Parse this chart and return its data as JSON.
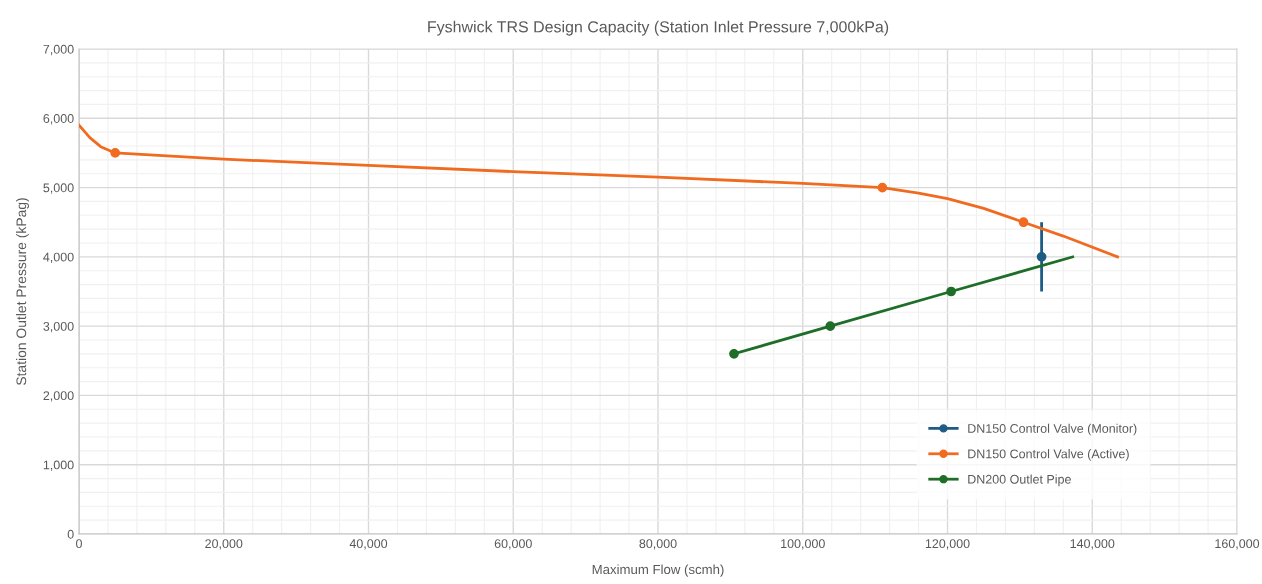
{
  "chart_data": {
    "type": "line",
    "title": "Fyshwick TRS Design Capacity (Station Inlet Pressure 7,000kPa)",
    "xlabel": "Maximum Flow (scmh)",
    "ylabel": "Station Outlet Pressure (kPag)",
    "series": [
      {
        "name": "DN150 Control Valve (Monitor)",
        "type": "scatter",
        "color": "#1f5c85",
        "x": [
          133000
        ],
        "values": [
          4000
        ],
        "errors": [
          500
        ]
      },
      {
        "name": "DN150 Control Valve (Active)",
        "color": "#f06b20",
        "x": [
          0,
          1500,
          3000,
          5000,
          20000,
          40000,
          60000,
          80000,
          100000,
          111000,
          116000,
          120000,
          125000,
          130500,
          136000,
          143500
        ],
        "values": [
          5900,
          5720,
          5590,
          5500,
          5410,
          5320,
          5230,
          5150,
          5060,
          5000,
          4920,
          4840,
          4700,
          4500,
          4300,
          4000
        ]
      },
      {
        "type": "scatter",
        "color": "#f06b20",
        "x": [
          5000,
          111000,
          130500
        ],
        "values": [
          5500,
          5000,
          4500
        ]
      },
      {
        "name": "DN200 Outlet Pipe",
        "color": "#1e6e28",
        "x": [
          90500,
          103800,
          120500,
          137300
        ],
        "values": [
          2600,
          3000,
          3500,
          4000
        ]
      },
      {
        "type": "scatter",
        "color": "#1e6e28",
        "x": [
          90500,
          103800,
          120500
        ],
        "values": [
          2600,
          3000,
          3500
        ]
      }
    ],
    "xlim": [
      0,
      160000
    ],
    "ylim": [
      0,
      7000
    ],
    "xticks": [
      0,
      {
        "value": 20000,
        "label": "20,000"
      },
      {
        "value": 40000,
        "label": "40,000"
      },
      {
        "value": 60000,
        "label": "60,000"
      },
      {
        "value": 80000,
        "label": "80,000"
      },
      {
        "value": 100000,
        "label": "100,000"
      },
      {
        "value": 120000,
        "label": "120,000"
      },
      {
        "value": 140000,
        "label": "140,000"
      },
      {
        "value": 160000,
        "label": "160,000"
      }
    ],
    "yticks": [
      0,
      {
        "value": 1000,
        "label": "1,000"
      },
      {
        "value": 2000,
        "label": "2,000"
      },
      {
        "value": 3000,
        "label": "3,000"
      },
      {
        "value": 4000,
        "label": "4,000"
      },
      {
        "value": 5000,
        "label": "5,000"
      },
      {
        "value": 6000,
        "label": "6,000"
      },
      {
        "value": 7000,
        "label": "7,000"
      }
    ],
    "grid": true,
    "legend": "bottom right",
    "line_style": "solid"
  }
}
